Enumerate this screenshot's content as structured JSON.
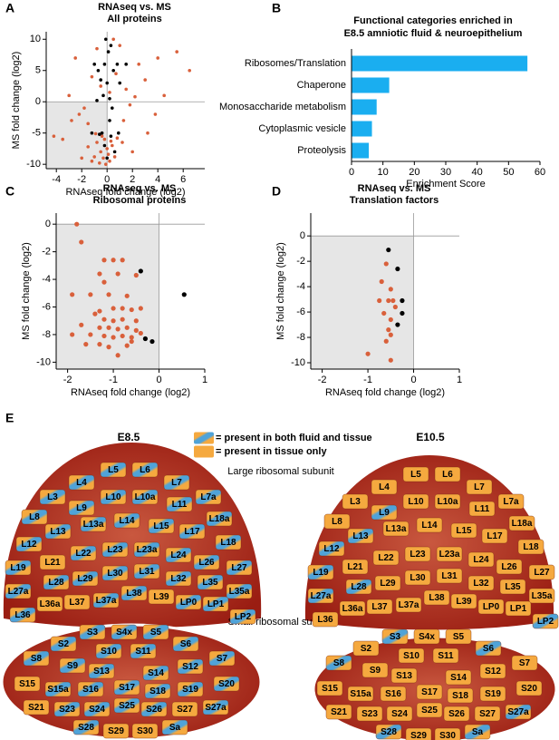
{
  "panel_labels": [
    "A",
    "B",
    "C",
    "D",
    "E"
  ],
  "chart_data": [
    {
      "type": "scatter",
      "title": "RNAseq vs. MS",
      "subtitle": "All proteins",
      "x_label": "RNAseq fold change (log2)",
      "y_label": "MS fold change (log2)",
      "xlim": [
        -4.8,
        7.7
      ],
      "ylim": [
        -10.7,
        11.2
      ],
      "xticks": [
        -4,
        -2,
        0,
        2,
        4,
        6
      ],
      "yticks": [
        10,
        5,
        0,
        -5,
        -10
      ],
      "shade_negative": true,
      "zero_lines": true,
      "series": [
        {
          "color": "#d9603b",
          "x": [
            -0.5,
            -0.3,
            0,
            -0.8,
            0.2,
            -1,
            -0.2,
            0.4,
            -0.6,
            0.1,
            -1.5,
            -0.4,
            0.6,
            -0.9,
            1.2,
            -2,
            0.8,
            -0.1,
            -1.2,
            0.3,
            -3.5,
            2,
            -2.8,
            -1.8,
            1.5,
            3,
            -0.5,
            2.5,
            -2.5,
            1,
            4.5,
            6.5,
            -1.2,
            0.5,
            3.8,
            5.5,
            -3,
            1.8,
            -0.8,
            2.2,
            0.7,
            -4.2,
            -1.5,
            3.2,
            0.2,
            -2.2,
            4,
            1.3
          ],
          "y": [
            -8,
            -9,
            -7.5,
            -6.5,
            -9.5,
            -8.8,
            -6,
            -7,
            -9.8,
            -8.4,
            -7.2,
            -5.5,
            -8.8,
            -5.1,
            -6.5,
            -9,
            -5.8,
            -10,
            -9.5,
            -6.3,
            -6,
            -8,
            -3,
            -1,
            2,
            3.5,
            2.5,
            6,
            7,
            9,
            1,
            5,
            4,
            10,
            -2,
            8,
            1,
            -0.5,
            8.5,
            0.8,
            4.5,
            -5.5,
            -3.5,
            -5,
            1.5,
            -2,
            7,
            -3
          ]
        },
        {
          "color": "#000000",
          "x": [
            -0.2,
            0.1,
            0,
            -0.4,
            0.3,
            -0.6,
            0.5,
            -0.1,
            0.2,
            -0.3,
            0.4,
            0.8,
            -1,
            -0.7,
            0,
            0.6,
            -0.2,
            1,
            0.3,
            -0.5,
            -1.2,
            0.9,
            -0.8,
            0.2,
            1.5
          ],
          "y": [
            6,
            8,
            3,
            -5,
            -5.5,
            -5.2,
            5,
            10,
            0.5,
            1,
            -1,
            6,
            6,
            5,
            -9,
            -8,
            -7,
            3,
            9,
            3.5,
            -5,
            -5,
            0.2,
            -3,
            6
          ]
        }
      ]
    },
    {
      "type": "bar",
      "title": "Functional categories enriched in",
      "subtitle": "E8.5 amniotic fluid & neuroepithelium",
      "x_label": "Enrichment Score",
      "orientation": "horizontal",
      "categories": [
        "Ribosomes/Translation",
        "Chaperone",
        "Monosaccharide metabolism",
        "Cytoplasmic vesicle",
        "Proteolysis"
      ],
      "values": [
        56,
        12,
        8,
        6.5,
        5.5
      ],
      "color": "#1aaef0",
      "xlim": [
        0,
        60
      ],
      "xticks": [
        0,
        10,
        20,
        30,
        40,
        50,
        60
      ]
    },
    {
      "type": "scatter",
      "title": "RNAseq vs. MS",
      "subtitle": "Ribosomal proteins",
      "x_label": "RNAseq fold change (log2)",
      "y_label": "MS fold change (log2)",
      "xlim": [
        -2.25,
        1.0
      ],
      "ylim": [
        -10.5,
        0.8
      ],
      "xticks": [
        -2,
        -1,
        0,
        1
      ],
      "yticks": [
        0,
        -2,
        -4,
        -6,
        -8,
        -10
      ],
      "shade_negative": true,
      "zero_lines": true,
      "series": [
        {
          "color": "#d9603b",
          "x": [
            -1.8,
            -1.7,
            -1.2,
            -1.0,
            -0.8,
            -1.3,
            -0.9,
            -0.5,
            -1.2,
            -1.9,
            -1.5,
            -1.1,
            -0.7,
            -1.3,
            -1.0,
            -0.8,
            -0.6,
            -0.4,
            -1.2,
            -1.0,
            -0.8,
            -0.5,
            -1.7,
            -1.3,
            -1.1,
            -0.9,
            -0.7,
            -0.5,
            -1.9,
            -1.5,
            -1.2,
            -1.0,
            -0.8,
            -0.6,
            -0.4,
            -1.6,
            -1.3,
            -1.1,
            -0.7,
            -0.9,
            -0.6,
            -1.4
          ],
          "y": [
            0,
            -1.3,
            -2.6,
            -2.6,
            -2.6,
            -3.6,
            -3.6,
            -3.7,
            -4.2,
            -5.1,
            -5.1,
            -5.1,
            -5.2,
            -6.3,
            -6.1,
            -6.1,
            -6.2,
            -6.1,
            -6.9,
            -7.0,
            -6.9,
            -7.0,
            -7.3,
            -7.5,
            -7.5,
            -7.6,
            -7.5,
            -7.7,
            -8.0,
            -8.0,
            -8.1,
            -8.2,
            -8.1,
            -8.2,
            -7.9,
            -8.7,
            -8.7,
            -8.9,
            -8.8,
            -9.5,
            -8.5,
            -6.5
          ]
        },
        {
          "color": "#000000",
          "x": [
            -0.4,
            0.55,
            -0.3,
            -0.15
          ],
          "y": [
            -3.4,
            -5.1,
            -8.3,
            -8.5
          ]
        }
      ]
    },
    {
      "type": "scatter",
      "title": "RNAseq vs. MS",
      "subtitle": "Translation factors",
      "x_label": "RNAseq fold change (log2)",
      "y_label": "MS fold change (log2)",
      "xlim": [
        -2.25,
        1.0
      ],
      "ylim": [
        -10.5,
        1.8
      ],
      "xticks": [
        -2,
        -1,
        0,
        1
      ],
      "yticks": [
        0,
        -2,
        -4,
        -6,
        -8,
        -10
      ],
      "shade_negative": true,
      "zero_lines": true,
      "series": [
        {
          "color": "#d9603b",
          "x": [
            -0.6,
            -0.7,
            -0.5,
            -0.75,
            -0.55,
            -0.45,
            -0.65,
            -0.5,
            -0.55,
            -0.5,
            -0.6,
            -1.0,
            -0.5,
            -0.4
          ],
          "y": [
            -2.2,
            -3.6,
            -4.2,
            -5.1,
            -5.1,
            -5.1,
            -6.1,
            -6.6,
            -7.4,
            -7.8,
            -8.3,
            -9.3,
            -9.8,
            -5.6
          ]
        },
        {
          "color": "#000000",
          "x": [
            -0.55,
            -0.35,
            -0.25,
            -0.25,
            -0.35
          ],
          "y": [
            -1.1,
            -2.6,
            -5.1,
            -6.1,
            -7.0
          ]
        }
      ]
    }
  ],
  "diagram": {
    "legend": [
      {
        "label": "= present in both fluid and tissue",
        "status": "both"
      },
      {
        "label": "= present in tissue only",
        "status": "tissue"
      }
    ],
    "large_label": "Large ribosomal subunit",
    "small_label": "Small ribosomal subunit",
    "panels": [
      {
        "title": "E8.5",
        "large": [
          "L5",
          "L6",
          "L4",
          "L7",
          "L3",
          "L9",
          "L10",
          "L10a",
          "L11",
          "L7a",
          "L8",
          "L13",
          "L13a",
          "L14",
          "L15",
          "L17",
          "L18a",
          "L12",
          "L21",
          "L22",
          "L23",
          "L23a",
          "L24",
          "L26",
          "L18",
          "L27",
          "L19",
          "L28",
          "L29",
          "L30",
          "L31",
          "L32",
          "L35",
          "L27a",
          "L37",
          "L37a",
          "L38",
          "L39",
          "LP0",
          "L35a",
          "L36",
          "L36a",
          "LP1",
          "LP2"
        ],
        "large_status": [
          "both",
          "both",
          "both",
          "both",
          "both",
          "both",
          "both",
          "both",
          "both",
          "both",
          "both",
          "both",
          "both",
          "both",
          "both",
          "both",
          "both",
          "both",
          "tissue",
          "both",
          "both",
          "both",
          "both",
          "both",
          "both",
          "both",
          "both",
          "both",
          "both",
          "both",
          "both",
          "both",
          "both",
          "both",
          "tissue",
          "both",
          "both",
          "tissue",
          "both",
          "both",
          "both",
          "tissue",
          "both",
          "both"
        ],
        "small": [
          "S3",
          "S4x",
          "S5",
          "S2",
          "S6",
          "S8",
          "S9",
          "S10",
          "S11",
          "S12",
          "S7",
          "S13",
          "S14",
          "S15",
          "S15a",
          "S16",
          "S17",
          "S18",
          "S19",
          "S20",
          "S21",
          "S23",
          "S24",
          "S25",
          "S26",
          "S27",
          "S27a",
          "S28",
          "S29",
          "S30",
          "Sa"
        ],
        "small_status": [
          "both",
          "both",
          "both",
          "both",
          "both",
          "both",
          "both",
          "both",
          "both",
          "both",
          "both",
          "both",
          "both",
          "tissue",
          "both",
          "both",
          "both",
          "both",
          "both",
          "both",
          "tissue",
          "both",
          "both",
          "both",
          "both",
          "tissue",
          "both",
          "both",
          "tissue",
          "tissue",
          "both"
        ]
      },
      {
        "title": "E10.5",
        "large": [
          "L5",
          "L6",
          "L4",
          "L7",
          "L3",
          "L9",
          "L10",
          "L10a",
          "L11",
          "L7a",
          "L8",
          "L13",
          "L13a",
          "L14",
          "L15",
          "L17",
          "L18a",
          "L12",
          "L21",
          "L22",
          "L23",
          "L23a",
          "L24",
          "L26",
          "L18",
          "L27",
          "L19",
          "L28",
          "L29",
          "L30",
          "L31",
          "L32",
          "L35",
          "L27a",
          "L37",
          "L37a",
          "L38",
          "L39",
          "LP0",
          "L35a",
          "L36",
          "L36a",
          "LP1",
          "LP2"
        ],
        "large_status": [
          "tissue",
          "tissue",
          "tissue",
          "tissue",
          "tissue",
          "both",
          "tissue",
          "tissue",
          "tissue",
          "tissue",
          "tissue",
          "both",
          "tissue",
          "tissue",
          "tissue",
          "tissue",
          "tissue",
          "both",
          "tissue",
          "tissue",
          "tissue",
          "tissue",
          "tissue",
          "tissue",
          "tissue",
          "tissue",
          "both",
          "both",
          "tissue",
          "tissue",
          "tissue",
          "tissue",
          "tissue",
          "both",
          "tissue",
          "tissue",
          "tissue",
          "tissue",
          "tissue",
          "tissue",
          "tissue",
          "tissue",
          "tissue",
          "both"
        ],
        "small": [
          "S3",
          "S4x",
          "S5",
          "S2",
          "S6",
          "S8",
          "S9",
          "S10",
          "S11",
          "S12",
          "S7",
          "S13",
          "S14",
          "S15",
          "S15a",
          "S16",
          "S17",
          "S18",
          "S19",
          "S20",
          "S21",
          "S23",
          "S24",
          "S25",
          "S26",
          "S27",
          "S27a",
          "S28",
          "S29",
          "S30",
          "Sa"
        ],
        "small_status": [
          "both",
          "tissue",
          "tissue",
          "tissue",
          "both",
          "both",
          "tissue",
          "tissue",
          "tissue",
          "tissue",
          "tissue",
          "tissue",
          "tissue",
          "tissue",
          "tissue",
          "tissue",
          "tissue",
          "tissue",
          "tissue",
          "tissue",
          "tissue",
          "tissue",
          "tissue",
          "tissue",
          "tissue",
          "tissue",
          "both",
          "both",
          "tissue",
          "tissue",
          "both"
        ]
      }
    ]
  }
}
